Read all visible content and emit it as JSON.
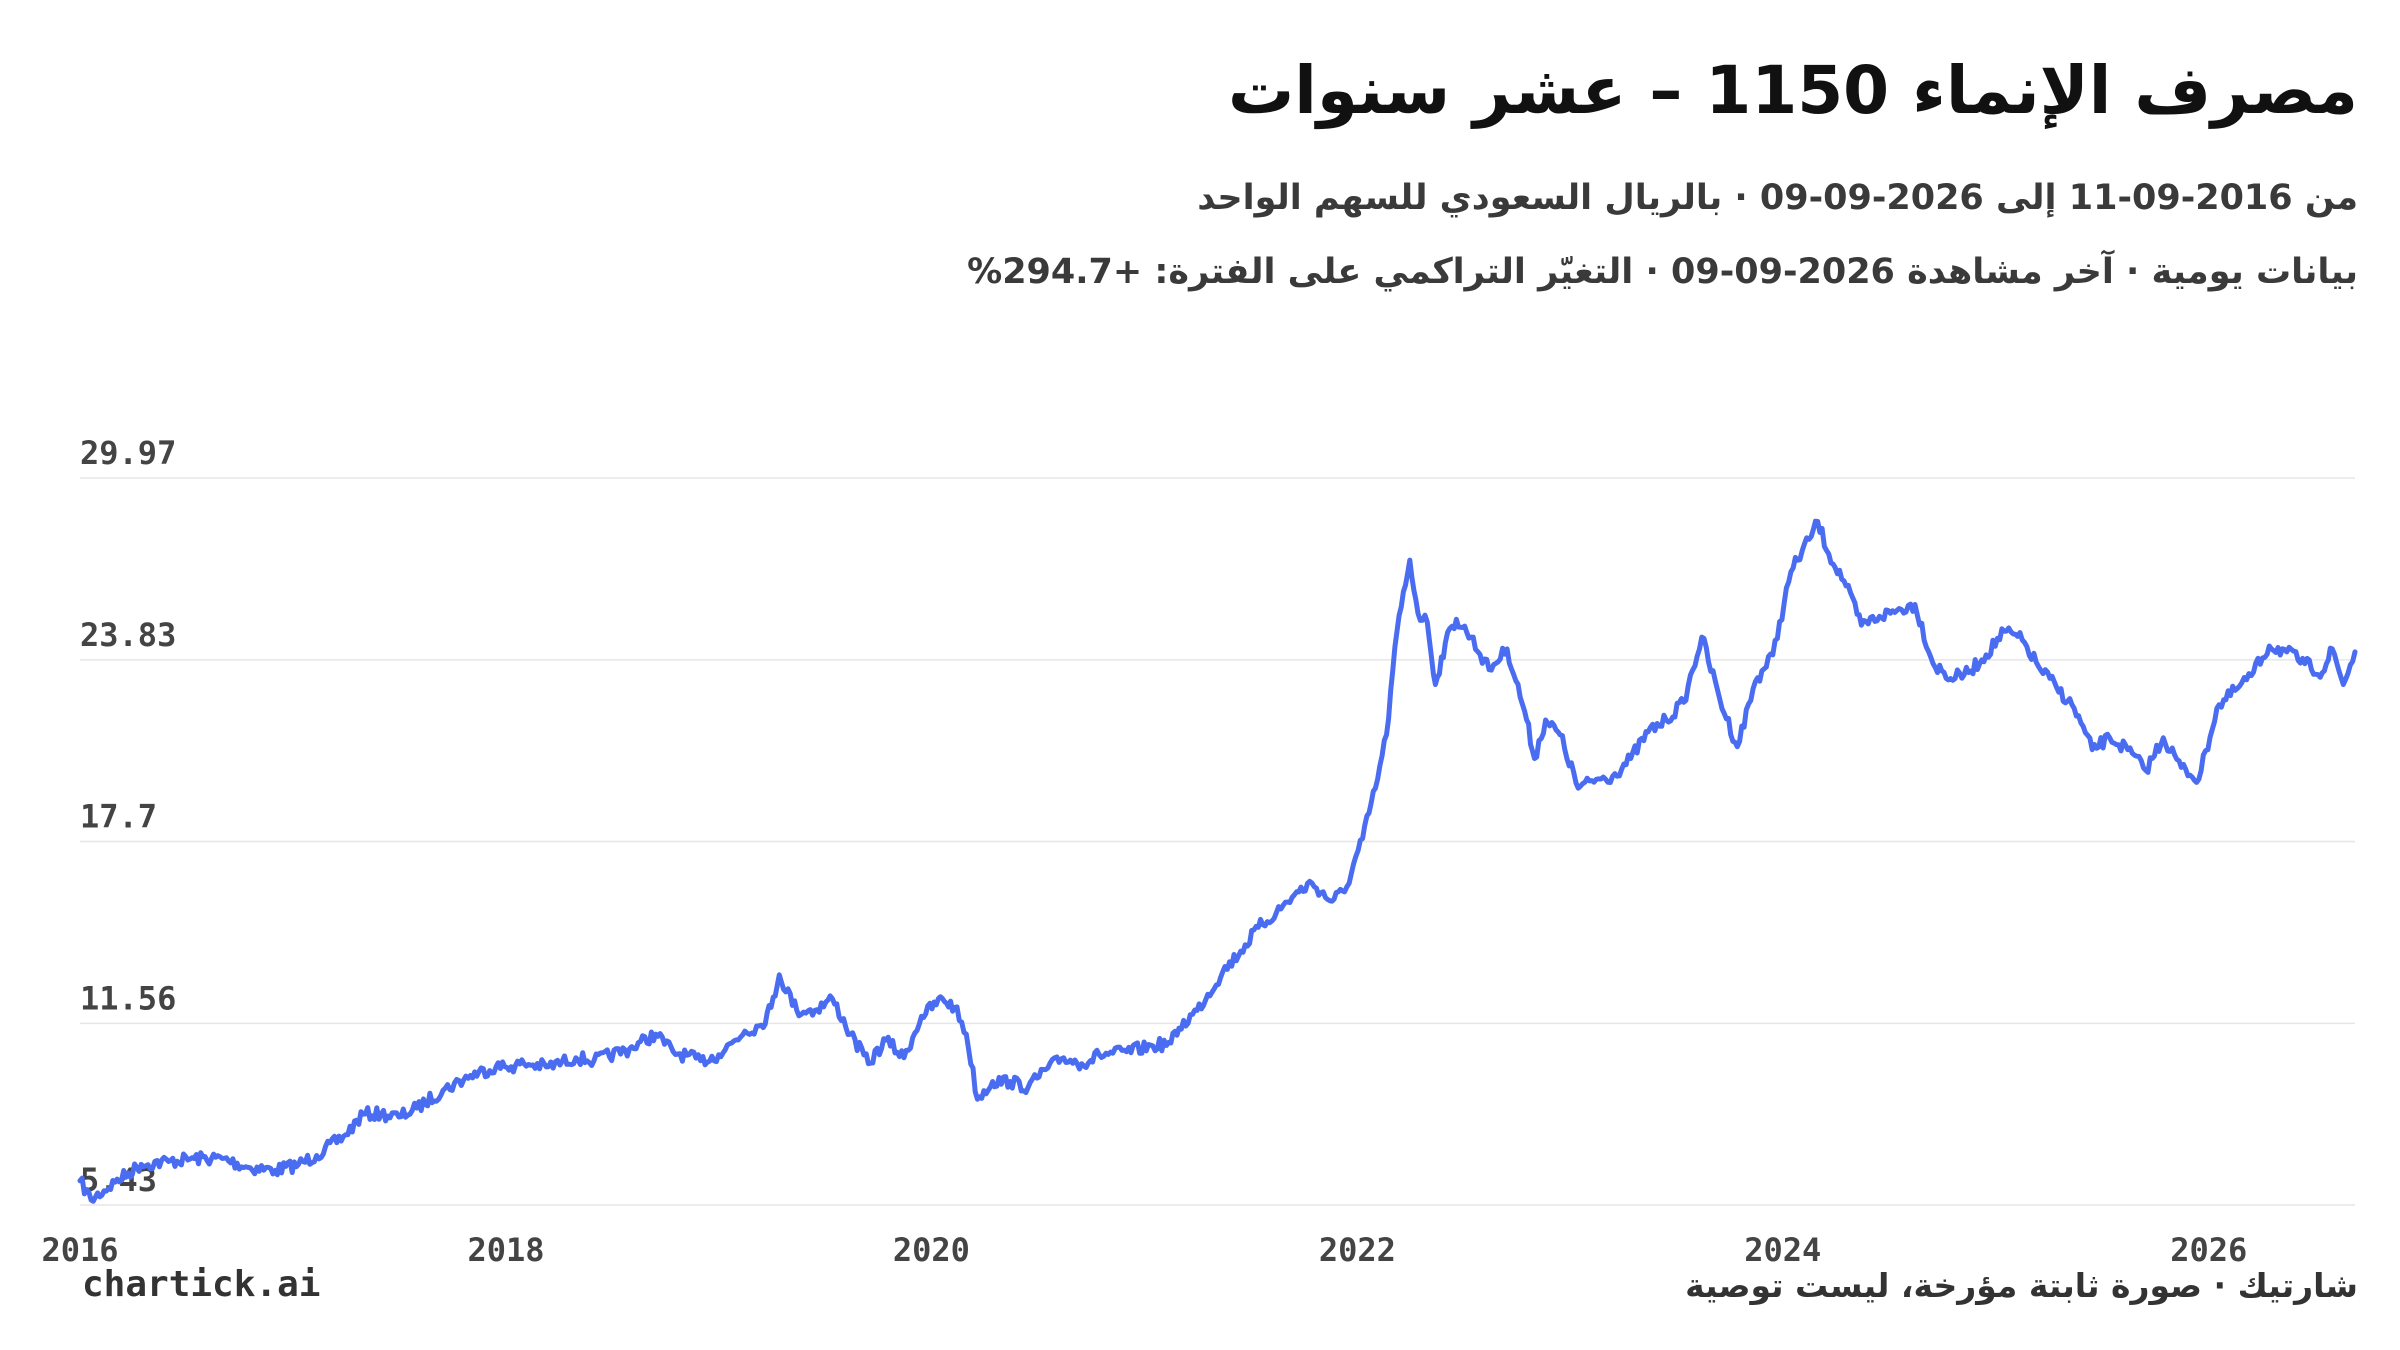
{
  "header": {
    "title": "مصرف الإنماء 1150 – عشر سنوات",
    "subtitle_line1": "من 2016-09-11 إلى 2026-09-09 · بالريال السعودي للسهم الواحد",
    "subtitle_line2": "بيانات يومية · آخر مشاهدة 2026-09-09 · التغيّر التراكمي على الفترة: +294.7%"
  },
  "footer": {
    "brand": "chartick.ai",
    "note": "شارتيك · صورة ثابتة مؤرخة، ليست توصية"
  },
  "colors": {
    "line": "#4a6cf0",
    "grid": "#e6e6e6",
    "axis_text": "#444444"
  },
  "chart_data": {
    "type": "line",
    "title": "مصرف الإنماء 1150 – عشر سنوات",
    "xlabel": "",
    "ylabel": "",
    "x_range": [
      "2016-01-01",
      "2026-09-09"
    ],
    "ylim": [
      5.43,
      29.97
    ],
    "y_ticks": [
      5.43,
      11.56,
      17.7,
      23.83,
      29.97
    ],
    "y_tick_labels": [
      "5.43",
      "11.56",
      "17.7",
      "23.83",
      "29.97"
    ],
    "x_ticks": [
      "2016-01-01",
      "2018-01-01",
      "2020-01-01",
      "2022-01-01",
      "2024-01-01",
      "2026-01-01"
    ],
    "x_tick_labels": [
      "2016",
      "2018",
      "2020",
      "2022",
      "2024",
      "2026"
    ],
    "grid": true,
    "legend": "none",
    "series": [
      {
        "x": [
          "2016-01-01",
          "2016-01-20",
          "2016-03-01",
          "2016-04-15",
          "2016-06-01",
          "2016-07-15",
          "2016-09-01",
          "2016-10-15",
          "2016-12-01",
          "2017-01-10",
          "2017-02-10",
          "2017-04-01",
          "2017-05-01",
          "2017-06-01",
          "2017-07-01",
          "2017-08-01",
          "2017-09-15",
          "2017-11-01",
          "2017-12-15",
          "2018-01-10",
          "2018-02-01",
          "2018-03-15",
          "2018-05-01",
          "2018-06-01",
          "2018-08-01",
          "2018-09-15",
          "2018-10-15",
          "2018-12-01",
          "2019-01-01",
          "2019-02-15",
          "2019-03-15",
          "2019-04-01",
          "2019-04-15",
          "2019-05-15",
          "2019-06-15",
          "2019-07-15",
          "2019-08-15",
          "2019-09-15",
          "2019-10-15",
          "2019-11-15",
          "2019-12-15",
          "2020-01-20",
          "2020-02-10",
          "2020-03-01",
          "2020-03-20",
          "2020-04-15",
          "2020-05-15",
          "2020-06-15",
          "2020-07-15",
          "2020-08-15",
          "2020-09-15",
          "2020-10-15",
          "2020-12-01",
          "2021-01-15",
          "2021-02-15",
          "2021-03-01",
          "2021-04-01",
          "2021-05-15",
          "2021-06-15",
          "2021-07-15",
          "2021-08-15",
          "2021-09-15",
          "2021-10-15",
          "2021-11-15",
          "2021-12-10",
          "2022-01-10",
          "2022-02-01",
          "2022-02-20",
          "2022-03-10",
          "2022-04-01",
          "2022-04-15",
          "2022-05-01",
          "2022-05-15",
          "2022-06-01",
          "2022-06-20",
          "2022-07-15",
          "2022-08-15",
          "2022-09-15",
          "2022-10-15",
          "2022-11-01",
          "2022-11-20",
          "2022-12-15",
          "2023-01-15",
          "2023-02-15",
          "2023-03-15",
          "2023-04-15",
          "2023-05-15",
          "2023-06-15",
          "2023-07-15",
          "2023-08-15",
          "2023-09-15",
          "2023-10-15",
          "2023-11-15",
          "2023-12-15",
          "2024-01-15",
          "2024-02-15",
          "2024-03-01",
          "2024-03-20",
          "2024-04-15",
          "2024-05-15",
          "2024-06-15",
          "2024-07-15",
          "2024-08-15",
          "2024-09-15",
          "2024-10-15",
          "2024-11-15",
          "2024-12-15",
          "2025-01-15",
          "2025-02-15",
          "2025-03-15",
          "2025-04-15",
          "2025-05-15",
          "2025-06-15",
          "2025-07-15",
          "2025-08-15",
          "2025-09-15",
          "2025-10-15",
          "2025-11-15",
          "2025-12-15",
          "2026-01-15",
          "2026-02-15",
          "2026-03-15",
          "2026-04-15",
          "2026-05-15",
          "2026-06-15",
          "2026-07-15",
          "2026-08-01",
          "2026-08-20",
          "2026-09-09"
        ],
        "y": [
          6.25,
          5.6,
          6.2,
          6.8,
          6.9,
          7.0,
          7.0,
          6.7,
          6.6,
          6.8,
          7.1,
          7.8,
          8.5,
          8.5,
          8.4,
          8.7,
          9.3,
          9.8,
          10.1,
          10.1,
          10.2,
          10.1,
          10.4,
          10.3,
          10.7,
          11.2,
          10.6,
          10.3,
          10.5,
          11.3,
          11.5,
          12.1,
          13.2,
          12.0,
          12.0,
          12.4,
          11.2,
          10.2,
          11.0,
          10.4,
          11.8,
          12.4,
          12.1,
          11.2,
          9.0,
          9.6,
          9.6,
          9.4,
          10.0,
          10.4,
          10.2,
          10.5,
          10.6,
          10.8,
          10.9,
          11.4,
          12.0,
          13.3,
          14.0,
          14.8,
          15.3,
          15.9,
          16.3,
          15.7,
          16.0,
          17.8,
          19.5,
          21.3,
          24.8,
          27.2,
          25.4,
          25.1,
          23.0,
          24.4,
          25.2,
          24.6,
          23.5,
          24.2,
          22.1,
          20.5,
          21.8,
          21.3,
          19.5,
          19.8,
          19.9,
          20.5,
          21.4,
          21.8,
          22.4,
          24.6,
          22.5,
          20.9,
          23.1,
          24.0,
          26.8,
          27.9,
          28.5,
          27.4,
          26.5,
          25.0,
          25.3,
          25.5,
          25.7,
          23.7,
          23.2,
          23.4,
          24.0,
          24.8,
          24.5,
          23.6,
          22.9,
          22.2,
          20.8,
          21.2,
          20.8,
          20.1,
          21.2,
          20.2,
          19.8,
          22.2,
          22.8,
          23.3,
          24.3,
          24.1,
          23.7,
          23.4,
          24.2,
          23.0,
          24.1
        ]
      }
    ]
  }
}
